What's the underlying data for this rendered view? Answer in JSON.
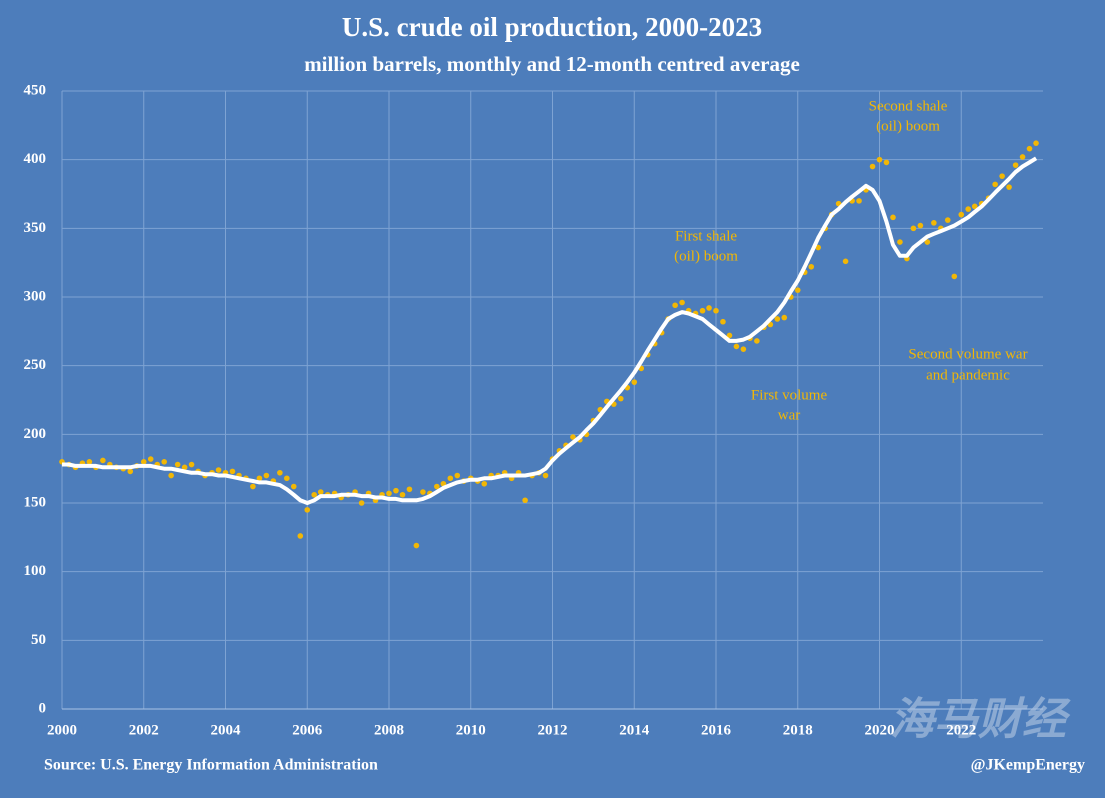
{
  "chart_data": {
    "type": "scatter",
    "title": "U.S. crude oil production, 2000-2023",
    "subtitle": "million barrels, monthly and 12-month centred average",
    "source": "Source: U.S. Energy Information Administration",
    "credit": "@JKempEnergy",
    "watermark": "海马财经",
    "annotations": [
      [
        "First shale",
        "(oil) boom"
      ],
      [
        "First volume",
        "war"
      ],
      [
        "Second shale",
        "(oil) boom"
      ],
      [
        "Second volume war",
        "and pandemic"
      ]
    ],
    "xlim": [
      2000,
      2024
    ],
    "xticks": [
      2000,
      2002,
      2004,
      2006,
      2008,
      2010,
      2012,
      2014,
      2016,
      2018,
      2020,
      2022
    ],
    "ylim": [
      0,
      450
    ],
    "yticks": [
      0,
      50,
      100,
      150,
      200,
      250,
      300,
      350,
      400,
      450
    ],
    "grid": true,
    "x": [
      2000,
      2000.17,
      2000.33,
      2000.5,
      2000.67,
      2000.83,
      2001,
      2001.17,
      2001.33,
      2001.5,
      2001.67,
      2001.83,
      2002,
      2002.17,
      2002.33,
      2002.5,
      2002.67,
      2002.83,
      2003,
      2003.17,
      2003.33,
      2003.5,
      2003.67,
      2003.83,
      2004,
      2004.17,
      2004.33,
      2004.5,
      2004.67,
      2004.83,
      2005,
      2005.17,
      2005.33,
      2005.5,
      2005.67,
      2005.83,
      2006,
      2006.17,
      2006.33,
      2006.5,
      2006.67,
      2006.83,
      2007,
      2007.17,
      2007.33,
      2007.5,
      2007.67,
      2007.83,
      2008,
      2008.17,
      2008.33,
      2008.5,
      2008.67,
      2008.83,
      2009,
      2009.17,
      2009.33,
      2009.5,
      2009.67,
      2009.83,
      2010,
      2010.17,
      2010.33,
      2010.5,
      2010.67,
      2010.83,
      2011,
      2011.17,
      2011.33,
      2011.5,
      2011.67,
      2011.83,
      2012,
      2012.17,
      2012.33,
      2012.5,
      2012.67,
      2012.83,
      2013,
      2013.17,
      2013.33,
      2013.5,
      2013.67,
      2013.83,
      2014,
      2014.17,
      2014.33,
      2014.5,
      2014.67,
      2014.83,
      2015,
      2015.17,
      2015.33,
      2015.5,
      2015.67,
      2015.83,
      2016,
      2016.17,
      2016.33,
      2016.5,
      2016.67,
      2016.83,
      2017,
      2017.17,
      2017.33,
      2017.5,
      2017.67,
      2017.83,
      2018,
      2018.17,
      2018.33,
      2018.5,
      2018.67,
      2018.83,
      2019,
      2019.17,
      2019.33,
      2019.5,
      2019.67,
      2019.83,
      2020,
      2020.17,
      2020.33,
      2020.5,
      2020.67,
      2020.83,
      2021,
      2021.17,
      2021.33,
      2021.5,
      2021.67,
      2021.83,
      2022,
      2022.17,
      2022.33,
      2022.5,
      2022.67,
      2022.83,
      2023,
      2023.17,
      2023.33,
      2023.5,
      2023.67,
      2023.83
    ],
    "series": [
      {
        "mark": "dot",
        "color": "#f2b705",
        "values": [
          180,
          178,
          176,
          179,
          180,
          176,
          181,
          178,
          176,
          175,
          173,
          177,
          180,
          182,
          178,
          180,
          170,
          178,
          176,
          178,
          173,
          170,
          172,
          174,
          172,
          173,
          170,
          168,
          162,
          168,
          170,
          166,
          172,
          168,
          162,
          126,
          145,
          156,
          158,
          156,
          157,
          154,
          156,
          158,
          150,
          157,
          152,
          156,
          157,
          159,
          156,
          160,
          119,
          158,
          157,
          162,
          164,
          168,
          170,
          166,
          168,
          166,
          164,
          170,
          170,
          172,
          168,
          172,
          152,
          170,
          172,
          170,
          182,
          188,
          192,
          198,
          196,
          200,
          210,
          218,
          224,
          222,
          226,
          234,
          238,
          248,
          258,
          266,
          274,
          284,
          294,
          296,
          290,
          288,
          290,
          292,
          290,
          282,
          272,
          264,
          262,
          270,
          268,
          278,
          280,
          284,
          285,
          300,
          305,
          318,
          322,
          336,
          350,
          360,
          368,
          326,
          370,
          370,
          378,
          395,
          400,
          398,
          358,
          340,
          328,
          350,
          352,
          340,
          354,
          350,
          356,
          315,
          360,
          364,
          366,
          368,
          372,
          382,
          388,
          380,
          396,
          402,
          408,
          412
        ]
      },
      {
        "mark": "line",
        "color": "#ffffff",
        "values": [
          178,
          178,
          177,
          177,
          177,
          177,
          176,
          176,
          176,
          176,
          176,
          177,
          177,
          177,
          176,
          175,
          175,
          174,
          173,
          172,
          172,
          171,
          171,
          170,
          170,
          169,
          168,
          167,
          166,
          165,
          165,
          164,
          163,
          160,
          156,
          152,
          150,
          152,
          155,
          155,
          155,
          156,
          156,
          156,
          155,
          155,
          154,
          154,
          153,
          153,
          152,
          152,
          152,
          153,
          155,
          158,
          161,
          163,
          165,
          166,
          167,
          167,
          168,
          168,
          169,
          170,
          170,
          170,
          170,
          171,
          172,
          175,
          181,
          186,
          190,
          194,
          198,
          203,
          208,
          214,
          220,
          226,
          232,
          238,
          245,
          253,
          261,
          269,
          277,
          284,
          287,
          289,
          288,
          286,
          284,
          280,
          276,
          272,
          268,
          268,
          269,
          271,
          275,
          279,
          284,
          289,
          296,
          304,
          312,
          322,
          332,
          343,
          352,
          360,
          364,
          369,
          373,
          377,
          381,
          378,
          370,
          355,
          338,
          330,
          330,
          336,
          340,
          344,
          346,
          348,
          350,
          352,
          355,
          358,
          362,
          366,
          371,
          376,
          381,
          386,
          391,
          395,
          398,
          401
        ]
      }
    ]
  }
}
